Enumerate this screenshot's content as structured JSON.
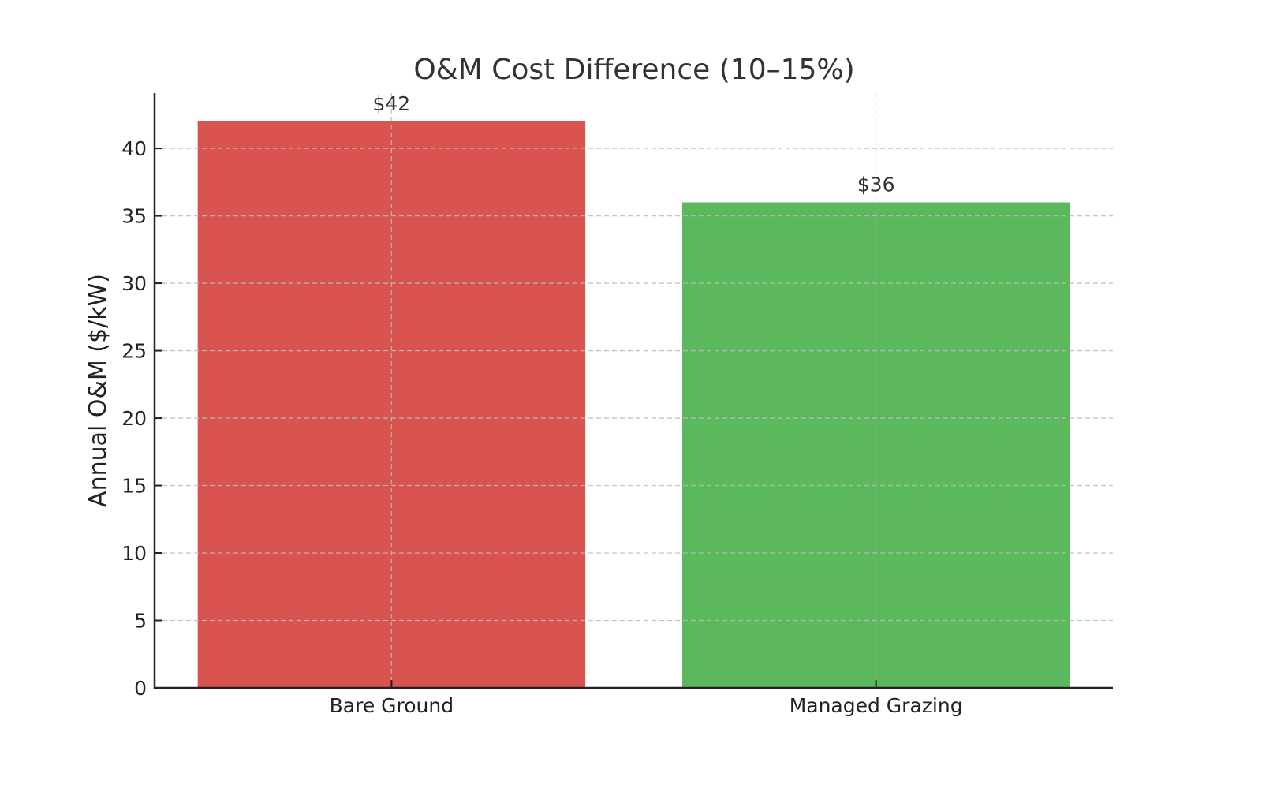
{
  "chart_data": {
    "type": "bar",
    "title": "O&M Cost Difference (10–15%)",
    "xlabel": "",
    "ylabel": "Annual O&M ($/kW)",
    "categories": [
      "Bare Ground",
      "Managed Grazing"
    ],
    "values": [
      42,
      36
    ],
    "data_labels": [
      "$42",
      "$36"
    ],
    "colors": [
      "#d9534f",
      "#5cb85c"
    ],
    "ylim": [
      0,
      44.1
    ],
    "yticks": [
      0,
      5,
      10,
      15,
      20,
      25,
      30,
      35,
      40
    ],
    "ytick_labels": [
      "0",
      "5",
      "10",
      "15",
      "20",
      "25",
      "30",
      "35",
      "40"
    ],
    "grid": true,
    "grid_style": "dashed"
  }
}
